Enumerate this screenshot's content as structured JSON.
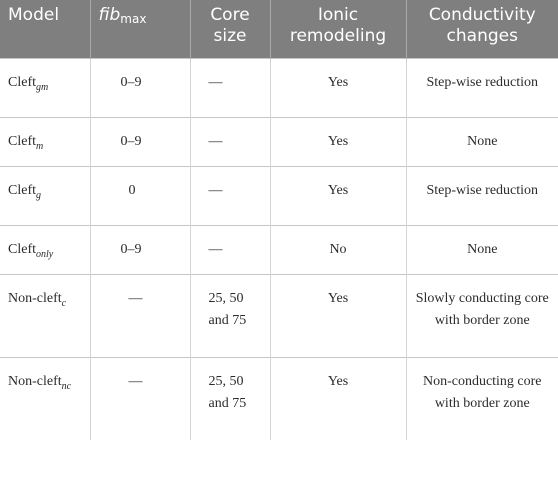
{
  "headers": {
    "model": "Model",
    "fib_base": "fib",
    "fib_sub": "max",
    "core_size": "Core size",
    "ionic": "Ionic remodeling",
    "conductivity": "Conductivity changes"
  },
  "rows": [
    {
      "model_base": "Cleft",
      "model_sub": "gm",
      "fib": "0–9",
      "core": "—",
      "ionic": "Yes",
      "conductivity": "Step-wise reduction"
    },
    {
      "model_base": "Cleft",
      "model_sub": "m",
      "fib": "0–9",
      "core": "—",
      "ionic": "Yes",
      "conductivity": "None"
    },
    {
      "model_base": "Cleft",
      "model_sub": "g",
      "fib": "0",
      "core": "—",
      "ionic": "Yes",
      "conductivity": "Step-wise reduction"
    },
    {
      "model_base": "Cleft",
      "model_sub": "only",
      "fib": "0–9",
      "core": "—",
      "ionic": "No",
      "conductivity": "None"
    },
    {
      "model_base": "Non-cleft",
      "model_sub": "c",
      "fib": "—",
      "core": "25, 50 and 75",
      "ionic": "Yes",
      "conductivity": "Slowly conducting core with border zone"
    },
    {
      "model_base": "Non-cleft",
      "model_sub": "nc",
      "fib": "—",
      "core": "25, 50 and 75",
      "ionic": "Yes",
      "conductivity": "Non-conducting core with border zone"
    }
  ]
}
